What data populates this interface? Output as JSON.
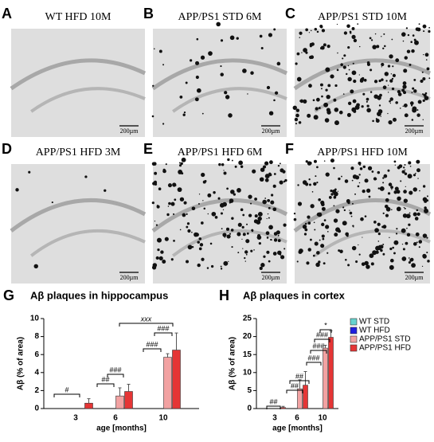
{
  "panels": [
    {
      "letter": "A",
      "title": "WT HFD 10M",
      "scale": "200µm"
    },
    {
      "letter": "B",
      "title": "APP/PS1 STD 6M",
      "scale": "200µm"
    },
    {
      "letter": "C",
      "title": "APP/PS1 STD 10M",
      "scale": "200µm"
    },
    {
      "letter": "D",
      "title": "APP/PS1 HFD 3M",
      "scale": "200µm"
    },
    {
      "letter": "E",
      "title": "APP/PS1 HFD 6M",
      "scale": "200µm"
    },
    {
      "letter": "F",
      "title": "APP/PS1 HFD 10M",
      "scale": "200µm"
    }
  ],
  "chart_data": [
    {
      "type": "bar",
      "panel_label": "G",
      "title": "Aβ plaques in hippocampus",
      "y_label": "Aβ (% of area)",
      "x_label": "age [months]",
      "categories": [
        "3",
        "6",
        "10"
      ],
      "ylim": [
        0,
        10
      ],
      "yticks": [
        0,
        2,
        4,
        6,
        8,
        10
      ],
      "series": [
        {
          "name": "WT STD",
          "color": "#66d4d0",
          "values": [
            null,
            0,
            0
          ],
          "errors": [
            null,
            null,
            null
          ]
        },
        {
          "name": "WT HFD",
          "color": "#1f1fe0",
          "values": [
            0,
            0,
            0
          ],
          "errors": [
            null,
            null,
            null
          ]
        },
        {
          "name": "APP/PS1 STD",
          "color": "#f2a2a2",
          "values": [
            null,
            1.4,
            5.7
          ],
          "errors": [
            null,
            0.9,
            0.4
          ]
        },
        {
          "name": "APP/PS1 HFD",
          "color": "#e53535",
          "values": [
            0.6,
            1.9,
            6.5
          ],
          "errors": [
            0.5,
            0.8,
            1.9
          ]
        }
      ],
      "annotations": [
        "#",
        "##",
        "###",
        "###",
        "###",
        "xxx"
      ]
    },
    {
      "type": "bar",
      "panel_label": "H",
      "title": "Aβ plaques in cortex",
      "y_label": "Aβ (% of area)",
      "x_label": "age [months]",
      "categories": [
        "3",
        "6",
        "10"
      ],
      "ylim": [
        0,
        25
      ],
      "yticks": [
        0,
        5,
        10,
        15,
        20,
        25
      ],
      "series": [
        {
          "name": "WT STD",
          "color": "#66d4d0",
          "values": [
            null,
            0,
            0
          ],
          "errors": [
            null,
            null,
            null
          ]
        },
        {
          "name": "WT HFD",
          "color": "#1f1fe0",
          "values": [
            0,
            0,
            0
          ],
          "errors": [
            null,
            null,
            null
          ]
        },
        {
          "name": "APP/PS1 STD",
          "color": "#f2a2a2",
          "values": [
            null,
            5.5,
            16.8
          ],
          "errors": [
            null,
            2.5,
            0.8
          ]
        },
        {
          "name": "APP/PS1 HFD",
          "color": "#e53535",
          "values": [
            0.3,
            6.5,
            19.8
          ],
          "errors": [
            0.3,
            3.8,
            1.8
          ]
        }
      ],
      "annotations": [
        "##",
        "##",
        "##",
        "###",
        "###",
        "###",
        "*"
      ],
      "legend": true
    }
  ]
}
